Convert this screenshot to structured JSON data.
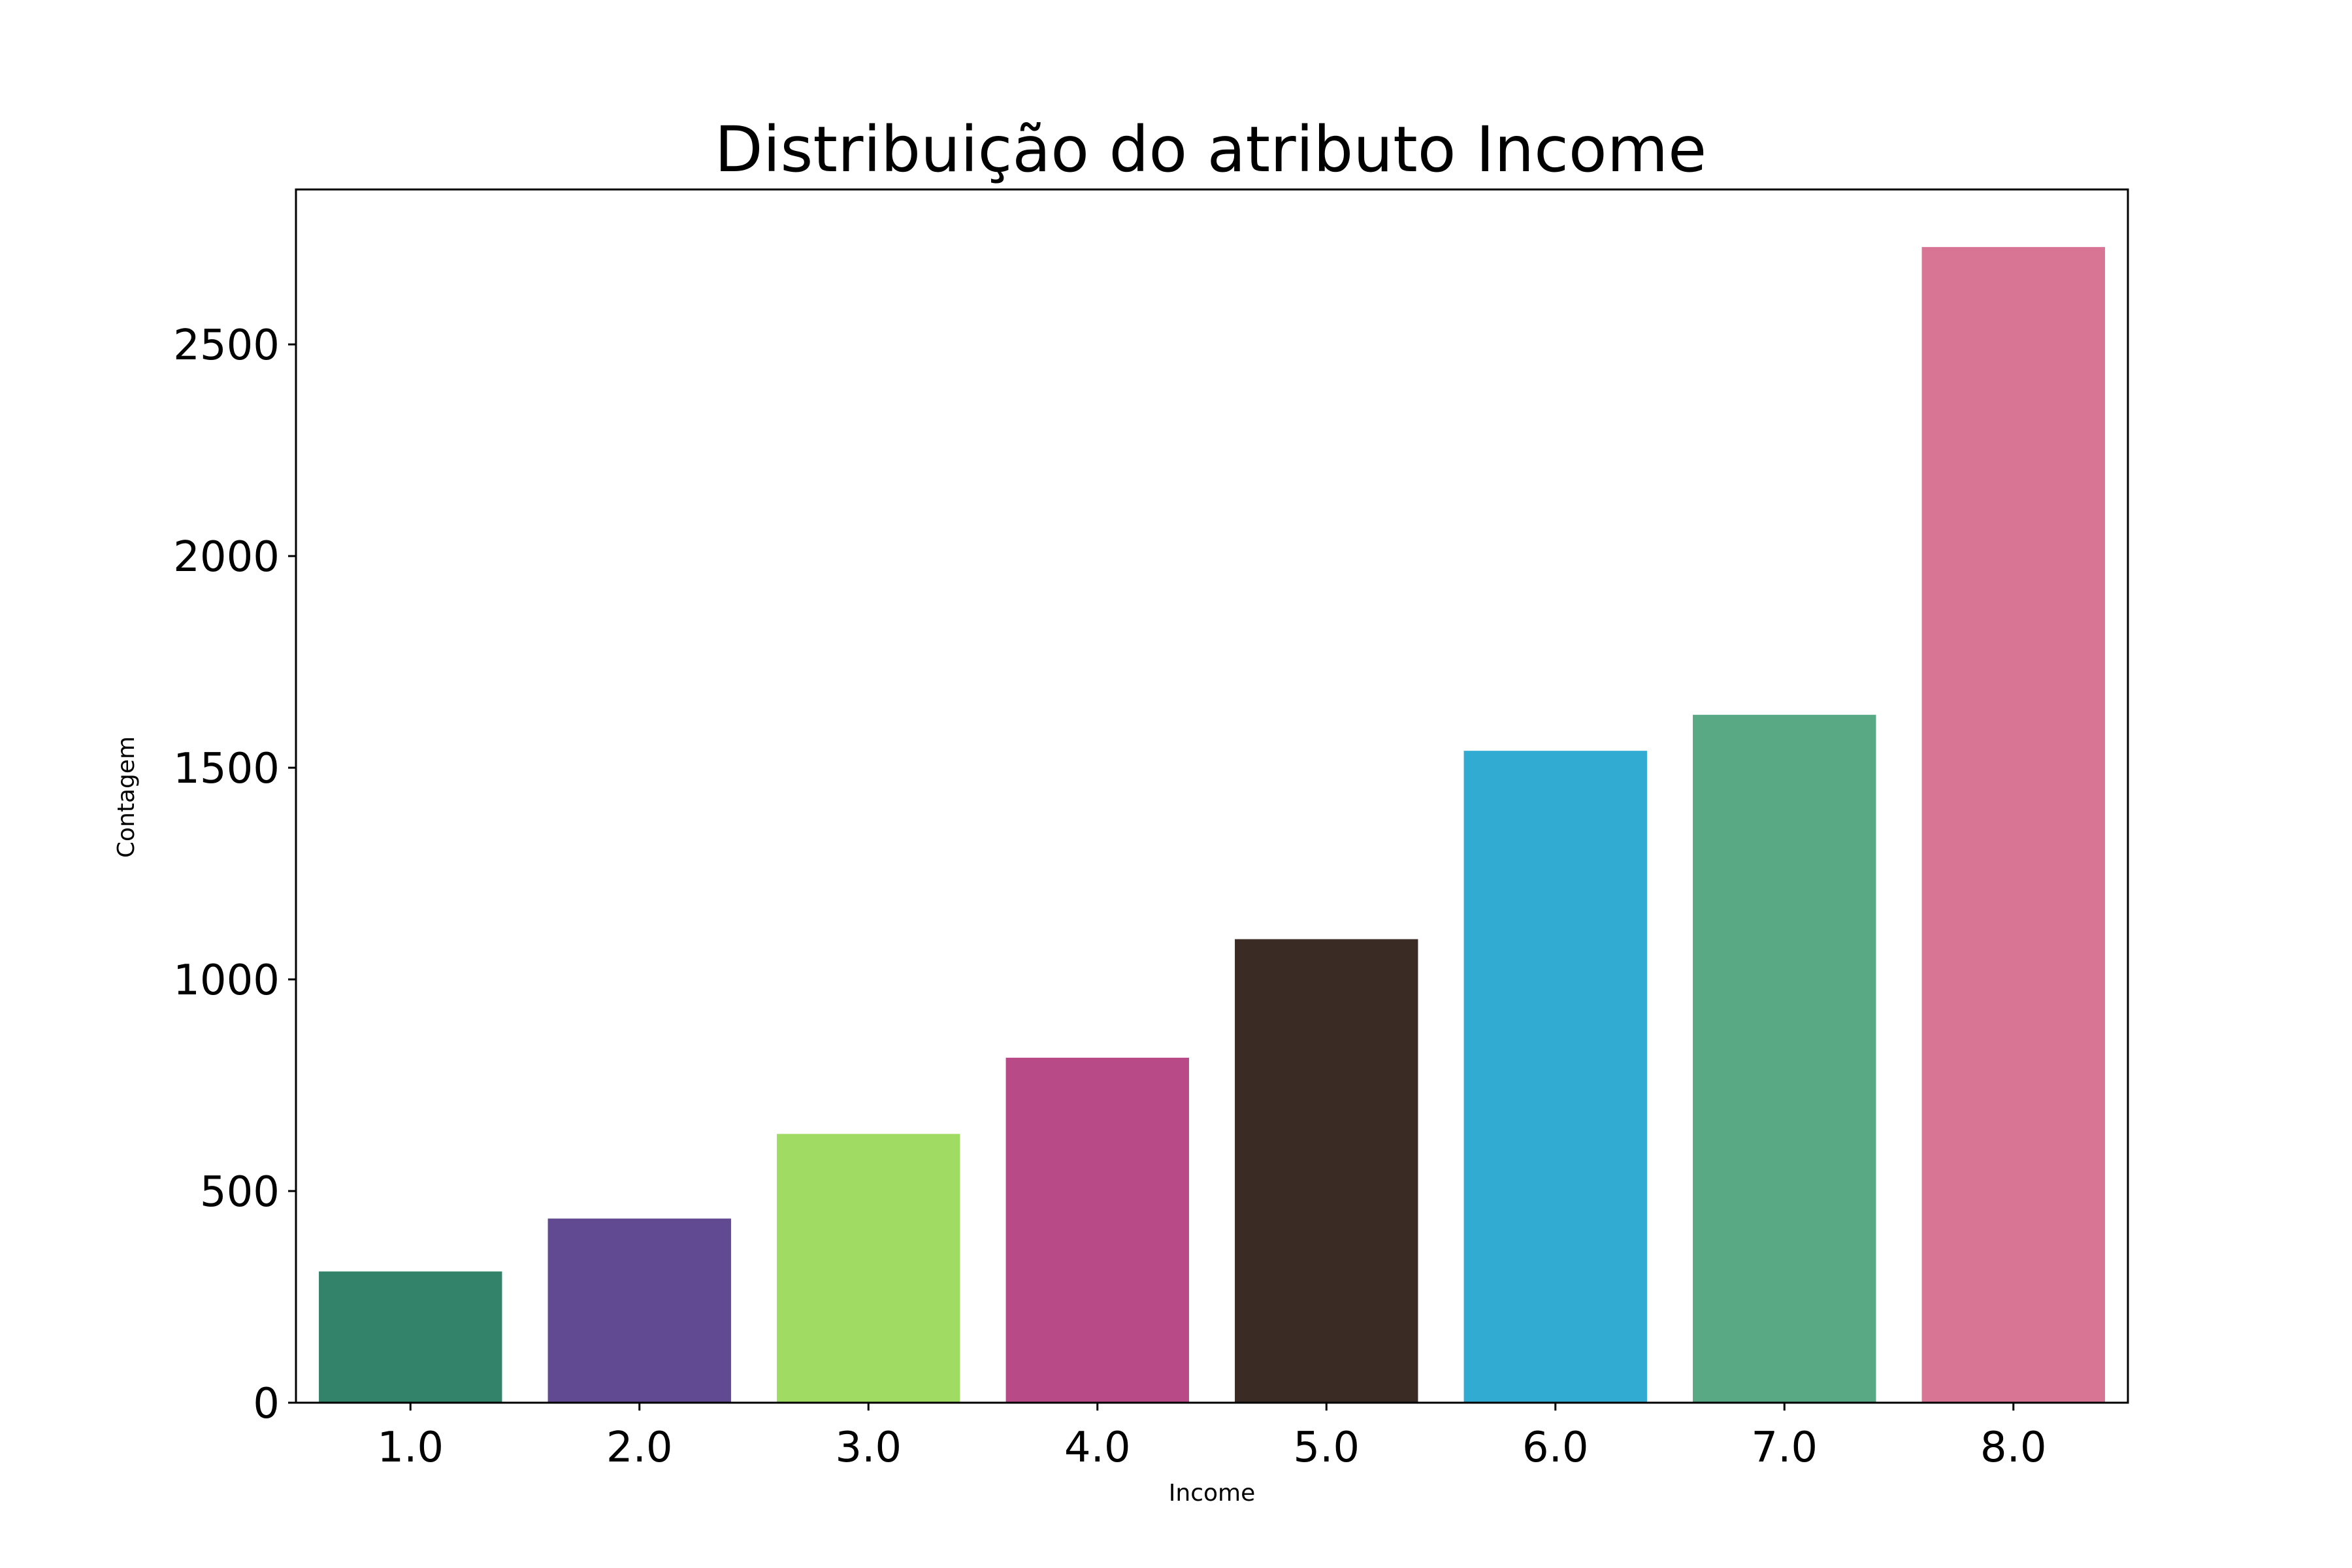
{
  "chart_data": {
    "type": "bar",
    "title": "Distribuição do atributo Income",
    "xlabel": "Income",
    "ylabel": "Contagem",
    "categories": [
      "1.0",
      "2.0",
      "3.0",
      "4.0",
      "5.0",
      "6.0",
      "7.0",
      "8.0"
    ],
    "values": [
      310,
      435,
      635,
      815,
      1095,
      1540,
      1625,
      2730
    ],
    "colors": [
      "#32836A",
      "#614A91",
      "#A0DB64",
      "#B84A88",
      "#3A2C24",
      "#32ABD2",
      "#59A985",
      "#D87594"
    ],
    "yticks": [
      0,
      500,
      1000,
      1500,
      2000,
      2500
    ],
    "ylim": [
      0,
      2866
    ],
    "grid": false,
    "legend": "none"
  }
}
